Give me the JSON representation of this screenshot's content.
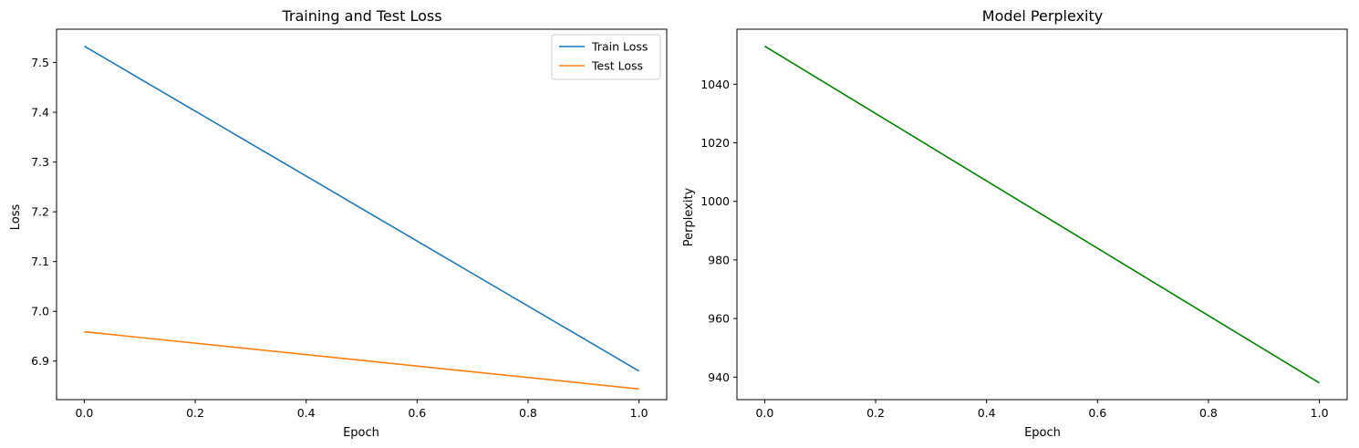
{
  "chart_data": [
    {
      "type": "line",
      "title": "Training and Test Loss",
      "xlabel": "Epoch",
      "ylabel": "Loss",
      "x": [
        0,
        1
      ],
      "xlim": [
        -0.05,
        1.05
      ],
      "ylim": [
        6.8225,
        7.567
      ],
      "xticks": [
        0.0,
        0.2,
        0.4,
        0.6,
        0.8,
        1.0
      ],
      "xtick_labels": [
        "0.0",
        "0.2",
        "0.4",
        "0.6",
        "0.8",
        "1.0"
      ],
      "yticks": [
        6.9,
        7.0,
        7.1,
        7.2,
        7.3,
        7.4,
        7.5
      ],
      "ytick_labels": [
        "6.9",
        "7.0",
        "7.1",
        "7.2",
        "7.3",
        "7.4",
        "7.5"
      ],
      "grid": false,
      "legend_position": "top-right",
      "series": [
        {
          "name": "Train Loss",
          "values": [
            7.533,
            6.88
          ],
          "color": "#1f77b4"
        },
        {
          "name": "Test Loss",
          "values": [
            6.959,
            6.844
          ],
          "color": "#ff7f0e"
        }
      ]
    },
    {
      "type": "line",
      "title": "Model Perplexity",
      "xlabel": "Epoch",
      "ylabel": "Perplexity",
      "x": [
        0,
        1
      ],
      "xlim": [
        -0.05,
        1.05
      ],
      "ylim": [
        932.3,
        1058.8
      ],
      "xticks": [
        0.0,
        0.2,
        0.4,
        0.6,
        0.8,
        1.0
      ],
      "xtick_labels": [
        "0.0",
        "0.2",
        "0.4",
        "0.6",
        "0.8",
        "1.0"
      ],
      "yticks": [
        940,
        960,
        980,
        1000,
        1020,
        1040
      ],
      "ytick_labels": [
        "940",
        "960",
        "980",
        "1000",
        "1020",
        "1040"
      ],
      "grid": false,
      "series": [
        {
          "values": [
            1053.0,
            938.0
          ],
          "color": "#008000"
        }
      ]
    }
  ]
}
